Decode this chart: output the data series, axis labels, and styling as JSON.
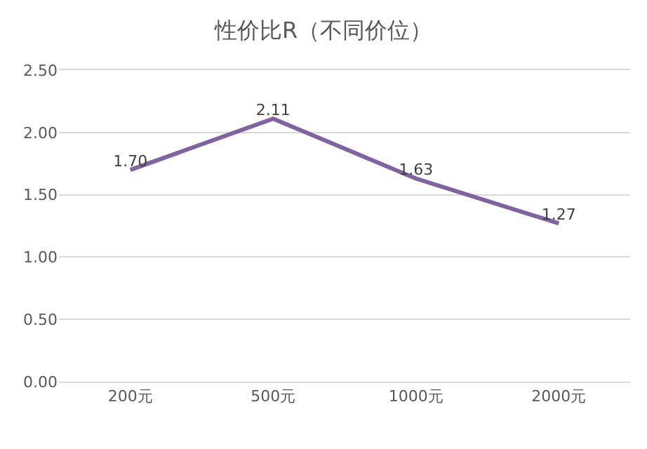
{
  "chart_data": {
    "type": "line",
    "title": "性价比R（不同价位）",
    "categories": [
      "200元",
      "500元",
      "1000元",
      "2000元"
    ],
    "series": [
      {
        "color": "#8064a2",
        "values": [
          1.7,
          2.11,
          1.63,
          1.27
        ],
        "value_labels": [
          "1.70",
          "2.11",
          "1.63",
          "1.27"
        ]
      }
    ],
    "ylim": [
      0,
      2.5
    ],
    "yticks": [
      "0.00",
      "0.50",
      "1.00",
      "1.50",
      "2.00",
      "2.50"
    ],
    "grid": "y",
    "marker": "none",
    "line_style": "solid"
  }
}
